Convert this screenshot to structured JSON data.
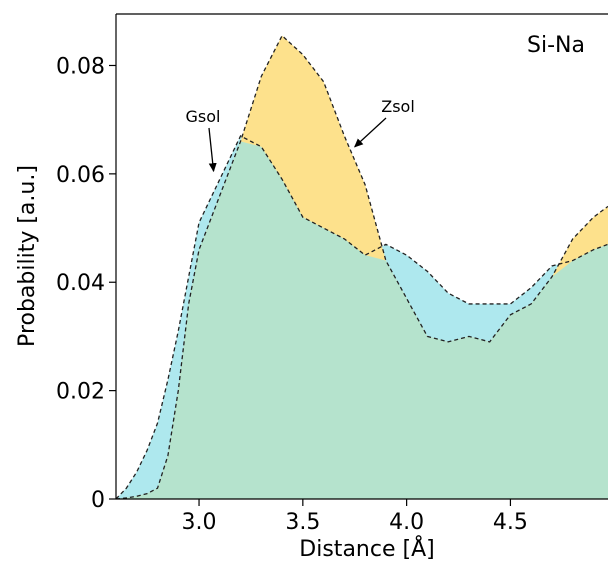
{
  "chart_data": {
    "type": "area",
    "title": "",
    "panel_label": "Si-Na",
    "xlabel": "Distance [Å]",
    "ylabel": "Probability [a.u.]",
    "xlim": [
      2.6,
      4.97
    ],
    "ylim": [
      0,
      0.0895
    ],
    "xticks": [
      3.0,
      3.5,
      4.0,
      4.5
    ],
    "xtick_labels": [
      "3.0",
      "3.5",
      "4.0",
      "4.5"
    ],
    "yticks": [
      0,
      0.02,
      0.04,
      0.06,
      0.08
    ],
    "ytick_labels": [
      "0",
      "0.02",
      "0.04",
      "0.06",
      "0.08"
    ],
    "grid": false,
    "series": [
      {
        "name": "Gsol",
        "color": "#aee8ee",
        "x": [
          2.6,
          2.65,
          2.7,
          2.75,
          2.8,
          2.85,
          2.9,
          2.95,
          3.0,
          3.1,
          3.2,
          3.3,
          3.4,
          3.5,
          3.6,
          3.7,
          3.8,
          3.9,
          4.0,
          4.1,
          4.2,
          4.3,
          4.4,
          4.5,
          4.6,
          4.7,
          4.8,
          4.9,
          4.97
        ],
        "values": [
          0.0,
          0.002,
          0.005,
          0.009,
          0.014,
          0.022,
          0.031,
          0.041,
          0.051,
          0.059,
          0.067,
          0.065,
          0.059,
          0.052,
          0.05,
          0.048,
          0.045,
          0.047,
          0.045,
          0.042,
          0.038,
          0.036,
          0.036,
          0.036,
          0.039,
          0.043,
          0.044,
          0.046,
          0.047
        ]
      },
      {
        "name": "Zsol",
        "color": "#fde18c",
        "x": [
          2.6,
          2.65,
          2.7,
          2.75,
          2.8,
          2.85,
          2.9,
          2.95,
          3.0,
          3.1,
          3.2,
          3.3,
          3.4,
          3.5,
          3.6,
          3.7,
          3.8,
          3.9,
          4.0,
          4.1,
          4.2,
          4.3,
          4.4,
          4.5,
          4.6,
          4.7,
          4.8,
          4.9,
          4.97
        ],
        "values": [
          0.0,
          0.0002,
          0.0005,
          0.001,
          0.002,
          0.008,
          0.02,
          0.036,
          0.046,
          0.056,
          0.066,
          0.078,
          0.0855,
          0.082,
          0.077,
          0.067,
          0.058,
          0.044,
          0.037,
          0.03,
          0.029,
          0.03,
          0.029,
          0.034,
          0.036,
          0.041,
          0.048,
          0.052,
          0.054
        ]
      }
    ],
    "overlap_color": "#b5e3cd",
    "annotations": [
      {
        "text": "Gsol",
        "target_x": 3.07,
        "target_y": 0.0605
      },
      {
        "text": "Zsol",
        "target_x": 3.75,
        "target_y": 0.065
      }
    ]
  }
}
